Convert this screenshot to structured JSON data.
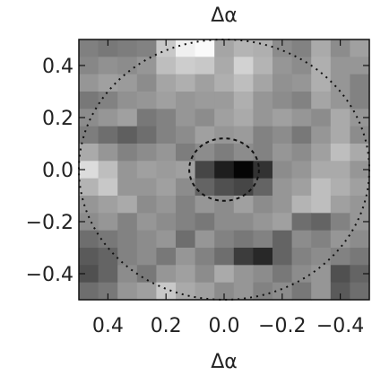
{
  "chart_data": {
    "type": "heatmap",
    "title": "Δα",
    "xlabel": "Δα",
    "ylabel": "",
    "xlim": [
      0.5,
      -0.5
    ],
    "ylim": [
      -0.5,
      0.5
    ],
    "xticks": [
      "0.4",
      "0.2",
      "0.0",
      "−0.2",
      "−0.4"
    ],
    "xtick_values": [
      0.4,
      0.2,
      0.0,
      -0.2,
      -0.4
    ],
    "yticks": [
      "−0.4",
      "−0.2",
      "0.0",
      "0.2",
      "0.4"
    ],
    "ytick_values": [
      -0.4,
      -0.2,
      0.0,
      0.2,
      0.4
    ],
    "colormap": "grayscale",
    "value_range": [
      0,
      255
    ],
    "grid_rows": 15,
    "grid_cols": 15,
    "z": [
      [
        128,
        120,
        125,
        130,
        200,
        240,
        250,
        165,
        180,
        175,
        140,
        130,
        170,
        140,
        160
      ],
      [
        135,
        145,
        140,
        150,
        190,
        205,
        200,
        170,
        210,
        180,
        150,
        140,
        175,
        150,
        150
      ],
      [
        150,
        160,
        155,
        140,
        165,
        175,
        160,
        175,
        190,
        165,
        145,
        150,
        175,
        150,
        130
      ],
      [
        120,
        130,
        145,
        150,
        160,
        150,
        155,
        155,
        175,
        150,
        140,
        130,
        165,
        150,
        130
      ],
      [
        140,
        150,
        160,
        120,
        130,
        150,
        140,
        160,
        170,
        150,
        160,
        150,
        140,
        170,
        150
      ],
      [
        125,
        110,
        95,
        110,
        130,
        140,
        160,
        150,
        155,
        130,
        140,
        120,
        150,
        170,
        140
      ],
      [
        170,
        150,
        130,
        140,
        150,
        125,
        140,
        125,
        140,
        130,
        150,
        140,
        160,
        190,
        170
      ],
      [
        220,
        190,
        150,
        160,
        155,
        160,
        70,
        30,
        5,
        50,
        140,
        150,
        170,
        170,
        150
      ],
      [
        180,
        200,
        150,
        150,
        160,
        140,
        100,
        80,
        70,
        100,
        150,
        160,
        190,
        175,
        160
      ],
      [
        150,
        160,
        170,
        140,
        150,
        130,
        150,
        140,
        160,
        140,
        150,
        180,
        190,
        160,
        150
      ],
      [
        140,
        150,
        130,
        150,
        140,
        130,
        120,
        140,
        140,
        150,
        160,
        110,
        100,
        130,
        150
      ],
      [
        110,
        120,
        130,
        140,
        150,
        110,
        150,
        130,
        120,
        130,
        100,
        140,
        130,
        150,
        140
      ],
      [
        90,
        100,
        130,
        140,
        120,
        150,
        130,
        110,
        60,
        40,
        100,
        130,
        140,
        130,
        120
      ],
      [
        80,
        100,
        140,
        120,
        150,
        160,
        140,
        170,
        150,
        140,
        120,
        140,
        150,
        80,
        100
      ],
      [
        110,
        120,
        150,
        160,
        200,
        170,
        160,
        140,
        150,
        130,
        140,
        120,
        150,
        90,
        110
      ]
    ],
    "circles": [
      {
        "center": [
          0.0,
          0.0
        ],
        "radius": 0.5,
        "style": "dotted",
        "color": "#111111"
      },
      {
        "center": [
          0.0,
          0.0
        ],
        "radius": 0.12,
        "style": "dashed",
        "color": "#111111"
      }
    ]
  }
}
